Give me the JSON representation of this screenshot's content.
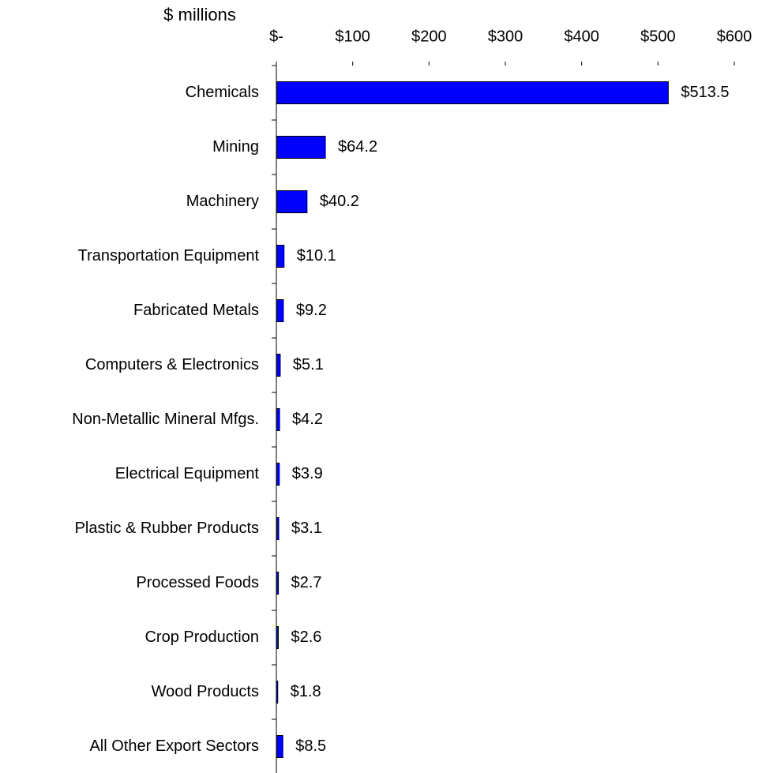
{
  "chart_data": {
    "type": "bar",
    "orientation": "horizontal",
    "x_label": "$ millions",
    "categories": [
      "Chemicals",
      "Mining",
      "Machinery",
      "Transportation Equipment",
      "Fabricated Metals",
      "Computers & Electronics",
      "Non-Metallic Mineral Mfgs.",
      "Electrical Equipment",
      "Plastic & Rubber Products",
      "Processed Foods",
      "Crop Production",
      "Wood Products",
      "All Other Export Sectors"
    ],
    "values": [
      513.5,
      64.2,
      40.2,
      10.1,
      9.2,
      5.1,
      4.2,
      3.9,
      3.1,
      2.7,
      2.6,
      1.8,
      8.5
    ],
    "value_labels": [
      "$513.5",
      "$64.2",
      "$40.2",
      "$10.1",
      "$9.2",
      "$5.1",
      "$4.2",
      "$3.9",
      "$3.1",
      "$2.7",
      "$2.6",
      "$1.8",
      "$8.5"
    ],
    "color": "#0000ff",
    "xlim": [
      0,
      600
    ],
    "xticks": [
      {
        "value": 0,
        "label": "$-"
      },
      {
        "value": 100,
        "label": "$100"
      },
      {
        "value": 200,
        "label": "$200"
      },
      {
        "value": 300,
        "label": "$300"
      },
      {
        "value": 400,
        "label": "$400"
      },
      {
        "value": 500,
        "label": "$500"
      },
      {
        "value": 600,
        "label": "$600"
      }
    ]
  }
}
